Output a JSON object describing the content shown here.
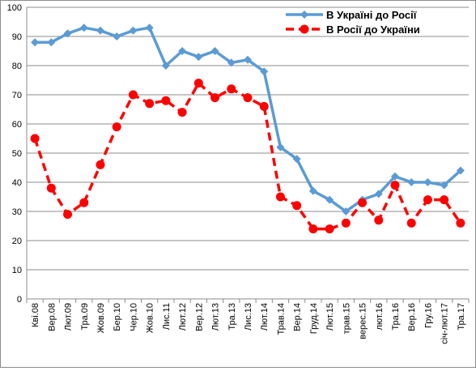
{
  "chart_data": {
    "type": "line",
    "title": "",
    "xlabel": "",
    "ylabel": "",
    "ylim": [
      0,
      100
    ],
    "yticks": [
      0,
      10,
      20,
      30,
      40,
      50,
      60,
      70,
      80,
      90,
      100
    ],
    "grid": true,
    "legend_position": "top-right",
    "categories": [
      "Кві.08",
      "Вер.08",
      "Лют.09",
      "Тра.09",
      "Жов.09",
      "Бер.10",
      "Чер.10",
      "Жов.10",
      "Лис.11",
      "Лют.12",
      "Вер.12",
      "Лют.13",
      "Тра.13",
      "Лис.13",
      "Лют.14",
      "Трав.14",
      "Вер.14",
      "Груд.14",
      "Лют.15",
      "трав.15",
      "верес.15",
      "лют.16",
      "Тра.16",
      "Вер.16",
      "Гру.16",
      "січ-лют.17",
      "Тра.17"
    ],
    "series": [
      {
        "name": "В Україні до Росії",
        "color": "#5b9bd5",
        "style": "solid",
        "marker": "diamond",
        "values": [
          88,
          88,
          91,
          93,
          92,
          90,
          92,
          93,
          80,
          85,
          83,
          85,
          81,
          82,
          78,
          52,
          48,
          37,
          34,
          30,
          34,
          36,
          42,
          40,
          40,
          39,
          44
        ]
      },
      {
        "name": "В Росії до України",
        "color": "#ff0000",
        "style": "dashed",
        "marker": "circle",
        "values": [
          55,
          38,
          29,
          33,
          46,
          59,
          70,
          67,
          68,
          64,
          74,
          69,
          72,
          69,
          66,
          35,
          32,
          24,
          24,
          26,
          33,
          27,
          39,
          26,
          34,
          34,
          26
        ]
      }
    ]
  }
}
